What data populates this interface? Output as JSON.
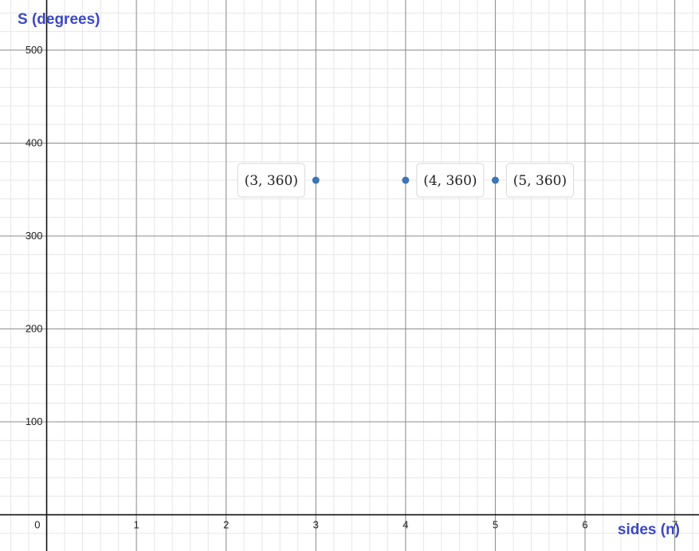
{
  "chart_data": {
    "type": "scatter",
    "xlabel": "sides (n)",
    "ylabel": "S (degrees)",
    "xlim": [
      -0.52,
      7.27
    ],
    "ylim": [
      -39,
      554
    ],
    "x_major_ticks": [
      1,
      2,
      3,
      4,
      5,
      6,
      7
    ],
    "y_major_ticks": [
      100,
      200,
      300,
      400,
      500
    ],
    "x_minor_step": 0.2,
    "y_minor_step": 20,
    "grid": true,
    "origin_label": "0",
    "series": [
      {
        "color": "#3d74b5",
        "points": [
          {
            "x": 3,
            "y": 360,
            "label": "(3, 360)",
            "label_side": "left"
          },
          {
            "x": 4,
            "y": 360,
            "label": "(4, 360)",
            "label_side": "right"
          },
          {
            "x": 5,
            "y": 360,
            "label": "(5, 360)",
            "label_side": "right"
          }
        ]
      }
    ],
    "axis_title_color": "#3b48c6"
  }
}
